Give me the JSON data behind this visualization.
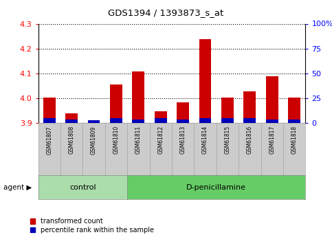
{
  "title": "GDS1394 / 1393873_s_at",
  "samples": [
    "GSM61807",
    "GSM61808",
    "GSM61809",
    "GSM61810",
    "GSM61811",
    "GSM61812",
    "GSM61813",
    "GSM61814",
    "GSM61815",
    "GSM61816",
    "GSM61817",
    "GSM61818"
  ],
  "red_values": [
    4.002,
    3.94,
    3.91,
    4.055,
    4.108,
    3.948,
    3.983,
    4.237,
    4.003,
    4.027,
    4.088,
    4.003
  ],
  "blue_percentile": [
    5,
    4,
    3,
    5,
    4,
    5,
    4,
    5,
    5,
    5,
    4,
    4
  ],
  "ylim_left": [
    3.9,
    4.3
  ],
  "ylim_right": [
    0,
    100
  ],
  "yticks_left": [
    3.9,
    4.0,
    4.1,
    4.2,
    4.3
  ],
  "yticks_right": [
    0,
    25,
    50,
    75,
    100
  ],
  "n_control": 4,
  "n_dpen": 8,
  "bar_width": 0.55,
  "red_color": "#cc0000",
  "blue_color": "#0000bb",
  "bg_color_plot": "#ffffff",
  "bg_color_fig": "#ffffff",
  "control_box_color": "#aaddaa",
  "dpen_box_color": "#66cc66",
  "tick_box_color": "#cccccc",
  "baseline": 3.9
}
